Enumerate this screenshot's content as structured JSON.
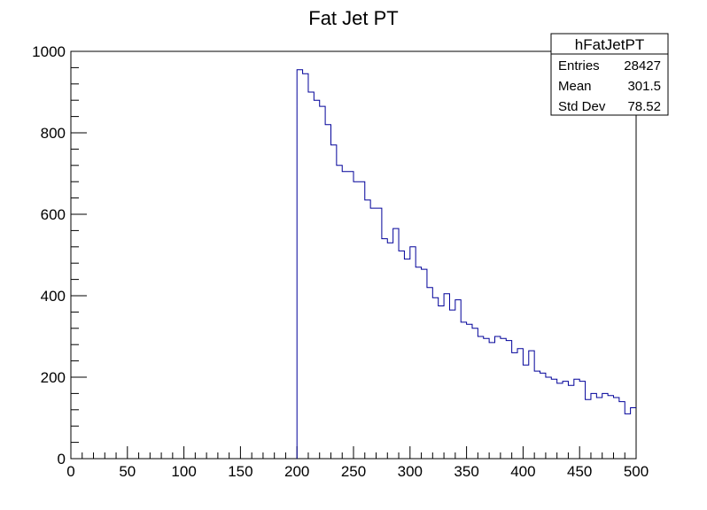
{
  "chart_data": {
    "type": "histogram",
    "title": "Fat Jet PT",
    "xlabel": "",
    "ylabel": "",
    "xlim": [
      0,
      500
    ],
    "ylim": [
      0,
      1000
    ],
    "bin_width": 5,
    "x_ticks": [
      "0",
      "50",
      "100",
      "150",
      "200",
      "250",
      "300",
      "350",
      "400",
      "450",
      "500"
    ],
    "y_ticks": [
      "0",
      "200",
      "400",
      "600",
      "800",
      "1000"
    ],
    "x_tick_values": [
      0,
      50,
      100,
      150,
      200,
      250,
      300,
      350,
      400,
      450,
      500
    ],
    "y_tick_values": [
      0,
      200,
      400,
      600,
      800,
      1000
    ],
    "series": [
      {
        "bin_starts": [
          200,
          205,
          210,
          215,
          220,
          225,
          230,
          235,
          240,
          245,
          250,
          255,
          260,
          265,
          270,
          275,
          280,
          285,
          290,
          295,
          300,
          305,
          310,
          315,
          320,
          325,
          330,
          335,
          340,
          345,
          350,
          355,
          360,
          365,
          370,
          375,
          380,
          385,
          390,
          395,
          400,
          405,
          410,
          415,
          420,
          425,
          430,
          435,
          440,
          445,
          450,
          455,
          460,
          465,
          470,
          475,
          480,
          485,
          490,
          495
        ],
        "counts": [
          955,
          945,
          900,
          880,
          865,
          820,
          770,
          720,
          705,
          705,
          680,
          680,
          635,
          615,
          615,
          540,
          530,
          565,
          510,
          490,
          520,
          470,
          465,
          420,
          395,
          375,
          405,
          365,
          390,
          335,
          330,
          320,
          300,
          295,
          285,
          300,
          295,
          290,
          260,
          270,
          230,
          265,
          215,
          210,
          200,
          195,
          185,
          190,
          180,
          195,
          190,
          145,
          160,
          150,
          160,
          155,
          150,
          140,
          110,
          125
        ],
        "color": "#000099"
      }
    ],
    "stats_box": {
      "title": "hFatJetPT",
      "rows": [
        {
          "label": "Entries",
          "value": "28427"
        },
        {
          "label": "Mean",
          "value": "301.5"
        },
        {
          "label": "Std Dev",
          "value": "78.52"
        }
      ]
    },
    "grid": false,
    "legend": "top-right"
  }
}
